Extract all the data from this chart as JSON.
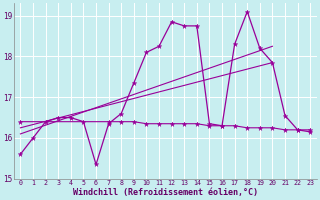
{
  "xlabel": "Windchill (Refroidissement éolien,°C)",
  "bg_color": "#c8eef0",
  "grid_color": "#ffffff",
  "line_color": "#990099",
  "xlim": [
    -0.5,
    23.5
  ],
  "ylim": [
    15,
    19.3
  ],
  "yticks": [
    15,
    16,
    17,
    18,
    19
  ],
  "xticks": [
    0,
    1,
    2,
    3,
    4,
    5,
    6,
    7,
    8,
    9,
    10,
    11,
    12,
    13,
    14,
    15,
    16,
    17,
    18,
    19,
    20,
    21,
    22,
    23
  ],
  "series1_x": [
    0,
    1,
    2,
    3,
    4,
    5,
    6,
    7,
    8,
    9,
    10,
    11,
    12,
    13,
    14,
    15,
    16,
    17,
    18,
    19,
    20,
    21,
    22,
    23
  ],
  "series1_y": [
    15.6,
    16.0,
    16.4,
    16.5,
    16.5,
    16.4,
    15.35,
    16.35,
    16.6,
    17.35,
    18.1,
    18.25,
    18.85,
    18.75,
    18.75,
    16.35,
    16.3,
    18.3,
    19.1,
    18.2,
    17.85,
    16.55,
    16.2,
    16.15
  ],
  "trend1_x": [
    0,
    20
  ],
  "trend1_y": [
    16.1,
    18.25
  ],
  "trend2_x": [
    0,
    20
  ],
  "trend2_y": [
    16.25,
    17.85
  ],
  "flat_x": [
    0,
    7,
    8,
    9,
    10,
    11,
    12,
    13,
    14,
    15,
    16,
    17,
    18,
    19,
    20,
    21,
    22,
    23
  ],
  "flat_y": [
    16.4,
    16.4,
    16.4,
    16.4,
    16.35,
    16.35,
    16.35,
    16.35,
    16.35,
    16.3,
    16.3,
    16.3,
    16.25,
    16.25,
    16.25,
    16.2,
    16.2,
    16.2
  ]
}
